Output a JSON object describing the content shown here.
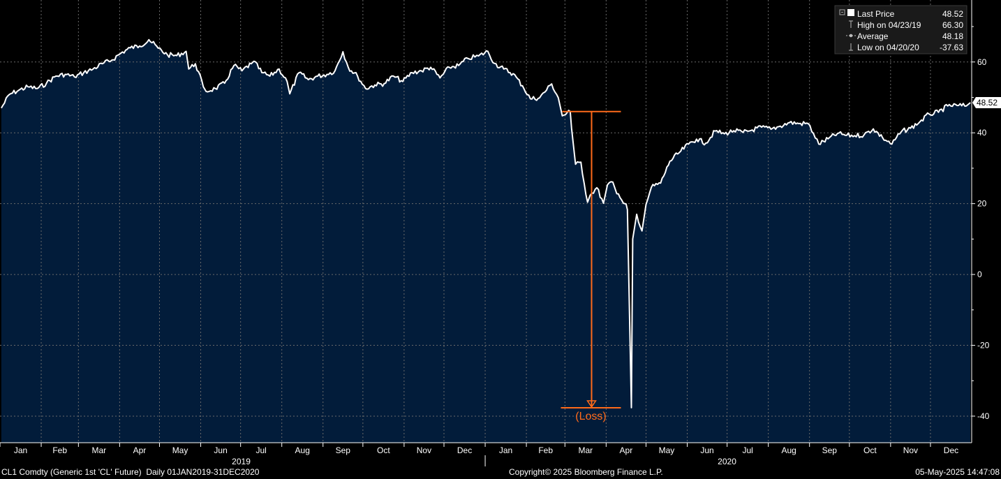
{
  "chart_data": {
    "type": "area",
    "y_ticks": [
      60,
      40,
      20,
      0,
      -20,
      -40
    ],
    "y_tick_labels": [
      "60",
      "40",
      "20",
      "0",
      "-20",
      "-40"
    ],
    "ylim": [
      -47.5,
      77.5
    ],
    "grid": true,
    "months_2019": [
      "Jan",
      "Feb",
      "Mar",
      "Apr",
      "May",
      "Jun",
      "Jul",
      "Aug",
      "Sep",
      "Oct",
      "Nov",
      "Dec"
    ],
    "months_2020": [
      "Jan",
      "Feb",
      "Mar",
      "Apr",
      "May",
      "Jun",
      "Jul",
      "Aug",
      "Sep",
      "Oct",
      "Nov",
      "Dec"
    ],
    "year_labels": [
      "2019",
      "2020"
    ],
    "series": [
      {
        "name": "Last Price",
        "color": "#ffffff",
        "fill": "#021c3a",
        "points": [
          [
            "2019-01-02",
            47.0
          ],
          [
            "2019-01-08",
            50.8
          ],
          [
            "2019-01-15",
            52.0
          ],
          [
            "2019-01-22",
            53.0
          ],
          [
            "2019-01-29",
            52.5
          ],
          [
            "2019-02-05",
            54.0
          ],
          [
            "2019-02-12",
            56.0
          ],
          [
            "2019-02-19",
            56.5
          ],
          [
            "2019-02-26",
            55.8
          ],
          [
            "2019-03-05",
            57.0
          ],
          [
            "2019-03-12",
            58.0
          ],
          [
            "2019-03-19",
            59.5
          ],
          [
            "2019-03-26",
            60.5
          ],
          [
            "2019-04-02",
            62.5
          ],
          [
            "2019-04-09",
            64.0
          ],
          [
            "2019-04-16",
            64.5
          ],
          [
            "2019-04-23",
            66.3
          ],
          [
            "2019-04-30",
            63.9
          ],
          [
            "2019-05-07",
            62.0
          ],
          [
            "2019-05-14",
            61.8
          ],
          [
            "2019-05-21",
            63.0
          ],
          [
            "2019-05-23",
            58.0
          ],
          [
            "2019-05-28",
            59.5
          ],
          [
            "2019-06-03",
            53.0
          ],
          [
            "2019-06-05",
            51.7
          ],
          [
            "2019-06-12",
            52.5
          ],
          [
            "2019-06-19",
            54.0
          ],
          [
            "2019-06-26",
            59.0
          ],
          [
            "2019-07-02",
            57.5
          ],
          [
            "2019-07-09",
            59.5
          ],
          [
            "2019-07-11",
            60.2
          ],
          [
            "2019-07-17",
            57.0
          ],
          [
            "2019-07-23",
            56.0
          ],
          [
            "2019-07-30",
            58.0
          ],
          [
            "2019-08-05",
            54.5
          ],
          [
            "2019-08-07",
            51.0
          ],
          [
            "2019-08-14",
            57.0
          ],
          [
            "2019-08-21",
            55.0
          ],
          [
            "2019-08-28",
            56.0
          ],
          [
            "2019-09-04",
            56.5
          ],
          [
            "2019-09-10",
            57.5
          ],
          [
            "2019-09-16",
            62.9
          ],
          [
            "2019-09-20",
            58.5
          ],
          [
            "2019-09-27",
            56.0
          ],
          [
            "2019-10-03",
            52.5
          ],
          [
            "2019-10-10",
            53.5
          ],
          [
            "2019-10-17",
            53.9
          ],
          [
            "2019-10-24",
            56.0
          ],
          [
            "2019-10-31",
            54.5
          ],
          [
            "2019-11-07",
            57.0
          ],
          [
            "2019-11-14",
            57.5
          ],
          [
            "2019-11-21",
            58.5
          ],
          [
            "2019-11-28",
            55.5
          ],
          [
            "2019-12-05",
            58.5
          ],
          [
            "2019-12-12",
            59.0
          ],
          [
            "2019-12-19",
            61.0
          ],
          [
            "2019-12-27",
            61.7
          ],
          [
            "2020-01-03",
            63.0
          ],
          [
            "2020-01-08",
            59.6
          ],
          [
            "2020-01-15",
            58.0
          ],
          [
            "2020-01-22",
            56.7
          ],
          [
            "2020-01-29",
            53.3
          ],
          [
            "2020-02-04",
            49.6
          ],
          [
            "2020-02-11",
            49.9
          ],
          [
            "2020-02-20",
            53.8
          ],
          [
            "2020-02-25",
            49.9
          ],
          [
            "2020-02-28",
            44.8
          ],
          [
            "2020-03-05",
            46.0
          ],
          [
            "2020-03-06",
            41.3
          ],
          [
            "2020-03-09",
            31.1
          ],
          [
            "2020-03-13",
            31.7
          ],
          [
            "2020-03-18",
            20.4
          ],
          [
            "2020-03-20",
            22.4
          ],
          [
            "2020-03-25",
            24.5
          ],
          [
            "2020-03-30",
            20.1
          ],
          [
            "2020-04-02",
            25.3
          ],
          [
            "2020-04-06",
            26.1
          ],
          [
            "2020-04-09",
            22.8
          ],
          [
            "2020-04-14",
            20.1
          ],
          [
            "2020-04-16",
            19.9
          ],
          [
            "2020-04-17",
            18.3
          ],
          [
            "2020-04-20",
            -37.63
          ],
          [
            "2020-04-21",
            10.0
          ],
          [
            "2020-04-24",
            17.0
          ],
          [
            "2020-04-28",
            12.3
          ],
          [
            "2020-05-01",
            19.8
          ],
          [
            "2020-05-05",
            24.6
          ],
          [
            "2020-05-12",
            25.8
          ],
          [
            "2020-05-19",
            32.0
          ],
          [
            "2020-05-26",
            34.4
          ],
          [
            "2020-06-02",
            36.8
          ],
          [
            "2020-06-08",
            38.2
          ],
          [
            "2020-06-15",
            37.1
          ],
          [
            "2020-06-22",
            40.5
          ],
          [
            "2020-06-29",
            39.7
          ],
          [
            "2020-07-06",
            40.6
          ],
          [
            "2020-07-13",
            40.1
          ],
          [
            "2020-07-20",
            40.8
          ],
          [
            "2020-07-27",
            41.6
          ],
          [
            "2020-08-03",
            41.0
          ],
          [
            "2020-08-10",
            41.9
          ],
          [
            "2020-08-17",
            42.9
          ],
          [
            "2020-08-24",
            42.6
          ],
          [
            "2020-08-31",
            42.6
          ],
          [
            "2020-09-04",
            39.8
          ],
          [
            "2020-09-08",
            36.8
          ],
          [
            "2020-09-15",
            38.3
          ],
          [
            "2020-09-22",
            39.8
          ],
          [
            "2020-09-29",
            39.3
          ],
          [
            "2020-10-05",
            39.2
          ],
          [
            "2020-10-12",
            39.4
          ],
          [
            "2020-10-19",
            41.1
          ],
          [
            "2020-10-26",
            38.6
          ],
          [
            "2020-11-02",
            36.8
          ],
          [
            "2020-11-09",
            40.3
          ],
          [
            "2020-11-16",
            41.3
          ],
          [
            "2020-11-23",
            43.1
          ],
          [
            "2020-11-30",
            45.3
          ],
          [
            "2020-12-07",
            45.8
          ],
          [
            "2020-12-14",
            47.6
          ],
          [
            "2020-12-21",
            47.7
          ],
          [
            "2020-12-28",
            47.6
          ],
          [
            "2020-12-31",
            48.52
          ]
        ]
      }
    ],
    "legend": {
      "placement": "top-right",
      "entries": [
        {
          "label": "Last Price",
          "value": "48.52"
        },
        {
          "label": "High on 04/23/19",
          "value": "66.30"
        },
        {
          "label": "Average",
          "value": "48.18"
        },
        {
          "label": "Low on 04/20/20",
          "value": "-37.63"
        }
      ]
    },
    "last_value_label": "48.52",
    "annotations": [
      {
        "type": "bracket",
        "color": "#ff6a1a",
        "from_date": "2020-02-28",
        "from_value": 46.0,
        "to_value": -37.63,
        "label": "(Loss)"
      }
    ]
  },
  "footer": {
    "left": "CL1 Comdty (Generic 1st 'CL' Future)  Daily 01JAN2019-31DEC2020",
    "center": "Copyright© 2025 Bloomberg Finance L.P.",
    "right": "05-May-2025 14:47:08"
  }
}
